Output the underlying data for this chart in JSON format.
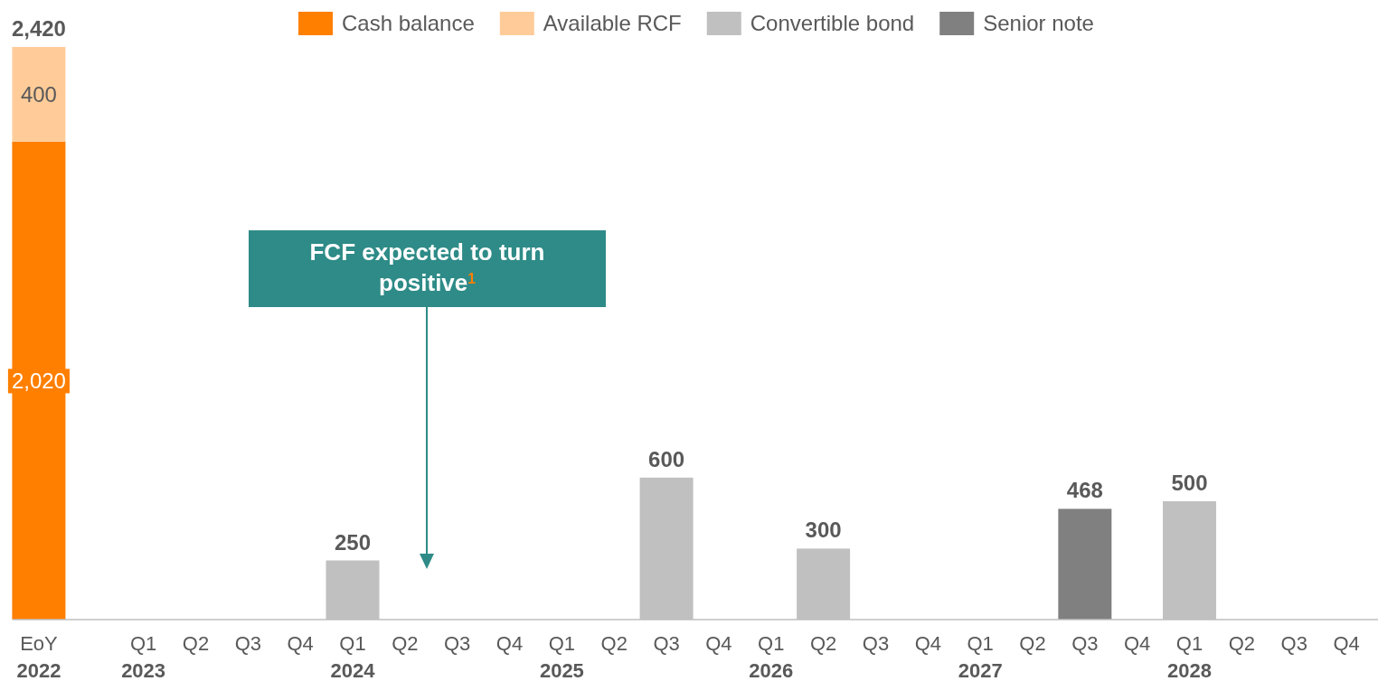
{
  "chart_data": {
    "type": "bar",
    "stacked": true,
    "legend": "top",
    "categories": [
      "EoY\n2022",
      null,
      "Q1\n2023",
      "Q2",
      "Q3",
      "Q4",
      "Q1\n2024",
      "Q2",
      "Q3",
      "Q4",
      "Q1\n2025",
      "Q2",
      "Q3",
      "Q4",
      "Q1\n2026",
      "Q2",
      "Q3",
      "Q4",
      "Q1\n2027",
      "Q2",
      "Q3",
      "Q4",
      "Q1\n2028",
      "Q2",
      "Q3",
      "Q4"
    ],
    "series": [
      {
        "name": "Cash balance",
        "color": "#ff7f00",
        "values": [
          2020,
          null,
          null,
          null,
          null,
          null,
          null,
          null,
          null,
          null,
          null,
          null,
          null,
          null,
          null,
          null,
          null,
          null,
          null,
          null,
          null,
          null,
          null,
          null,
          null,
          null
        ],
        "value_labels": [
          "2,020",
          null,
          null,
          null,
          null,
          null,
          null,
          null,
          null,
          null,
          null,
          null,
          null,
          null,
          null,
          null,
          null,
          null,
          null,
          null,
          null,
          null,
          null,
          null,
          null,
          null
        ]
      },
      {
        "name": "Available RCF",
        "color": "#ffcc99",
        "values": [
          400,
          null,
          null,
          null,
          null,
          null,
          null,
          null,
          null,
          null,
          null,
          null,
          null,
          null,
          null,
          null,
          null,
          null,
          null,
          null,
          null,
          null,
          null,
          null,
          null,
          null
        ],
        "value_labels": [
          "400",
          null,
          null,
          null,
          null,
          null,
          null,
          null,
          null,
          null,
          null,
          null,
          null,
          null,
          null,
          null,
          null,
          null,
          null,
          null,
          null,
          null,
          null,
          null,
          null,
          null
        ]
      },
      {
        "name": "Convertible bond",
        "color": "#c0c0c0",
        "values": [
          null,
          null,
          null,
          null,
          null,
          null,
          250,
          null,
          null,
          null,
          null,
          null,
          600,
          null,
          null,
          300,
          null,
          null,
          null,
          null,
          null,
          null,
          500,
          null,
          null,
          null
        ],
        "value_labels": [
          null,
          null,
          null,
          null,
          null,
          null,
          "250",
          null,
          null,
          null,
          null,
          null,
          "600",
          null,
          null,
          "300",
          null,
          null,
          null,
          null,
          null,
          null,
          "500",
          null,
          null,
          null
        ]
      },
      {
        "name": "Senior note",
        "color": "#808080",
        "values": [
          null,
          null,
          null,
          null,
          null,
          null,
          null,
          null,
          null,
          null,
          null,
          null,
          null,
          null,
          null,
          null,
          null,
          null,
          null,
          null,
          468,
          null,
          null,
          null,
          null,
          null
        ],
        "value_labels": [
          null,
          null,
          null,
          null,
          null,
          null,
          null,
          null,
          null,
          null,
          null,
          null,
          null,
          null,
          null,
          null,
          null,
          null,
          null,
          null,
          "468",
          null,
          null,
          null,
          null,
          null
        ]
      }
    ],
    "totals": [
      "2,420",
      null,
      null,
      null,
      null,
      null,
      null,
      null,
      null,
      null,
      null,
      null,
      null,
      null,
      null,
      null,
      null,
      null,
      null,
      null,
      null,
      null,
      null,
      null,
      null,
      null
    ],
    "annotations": [
      "FCF expected to turn positive$^{1}$"
    ]
  }
}
